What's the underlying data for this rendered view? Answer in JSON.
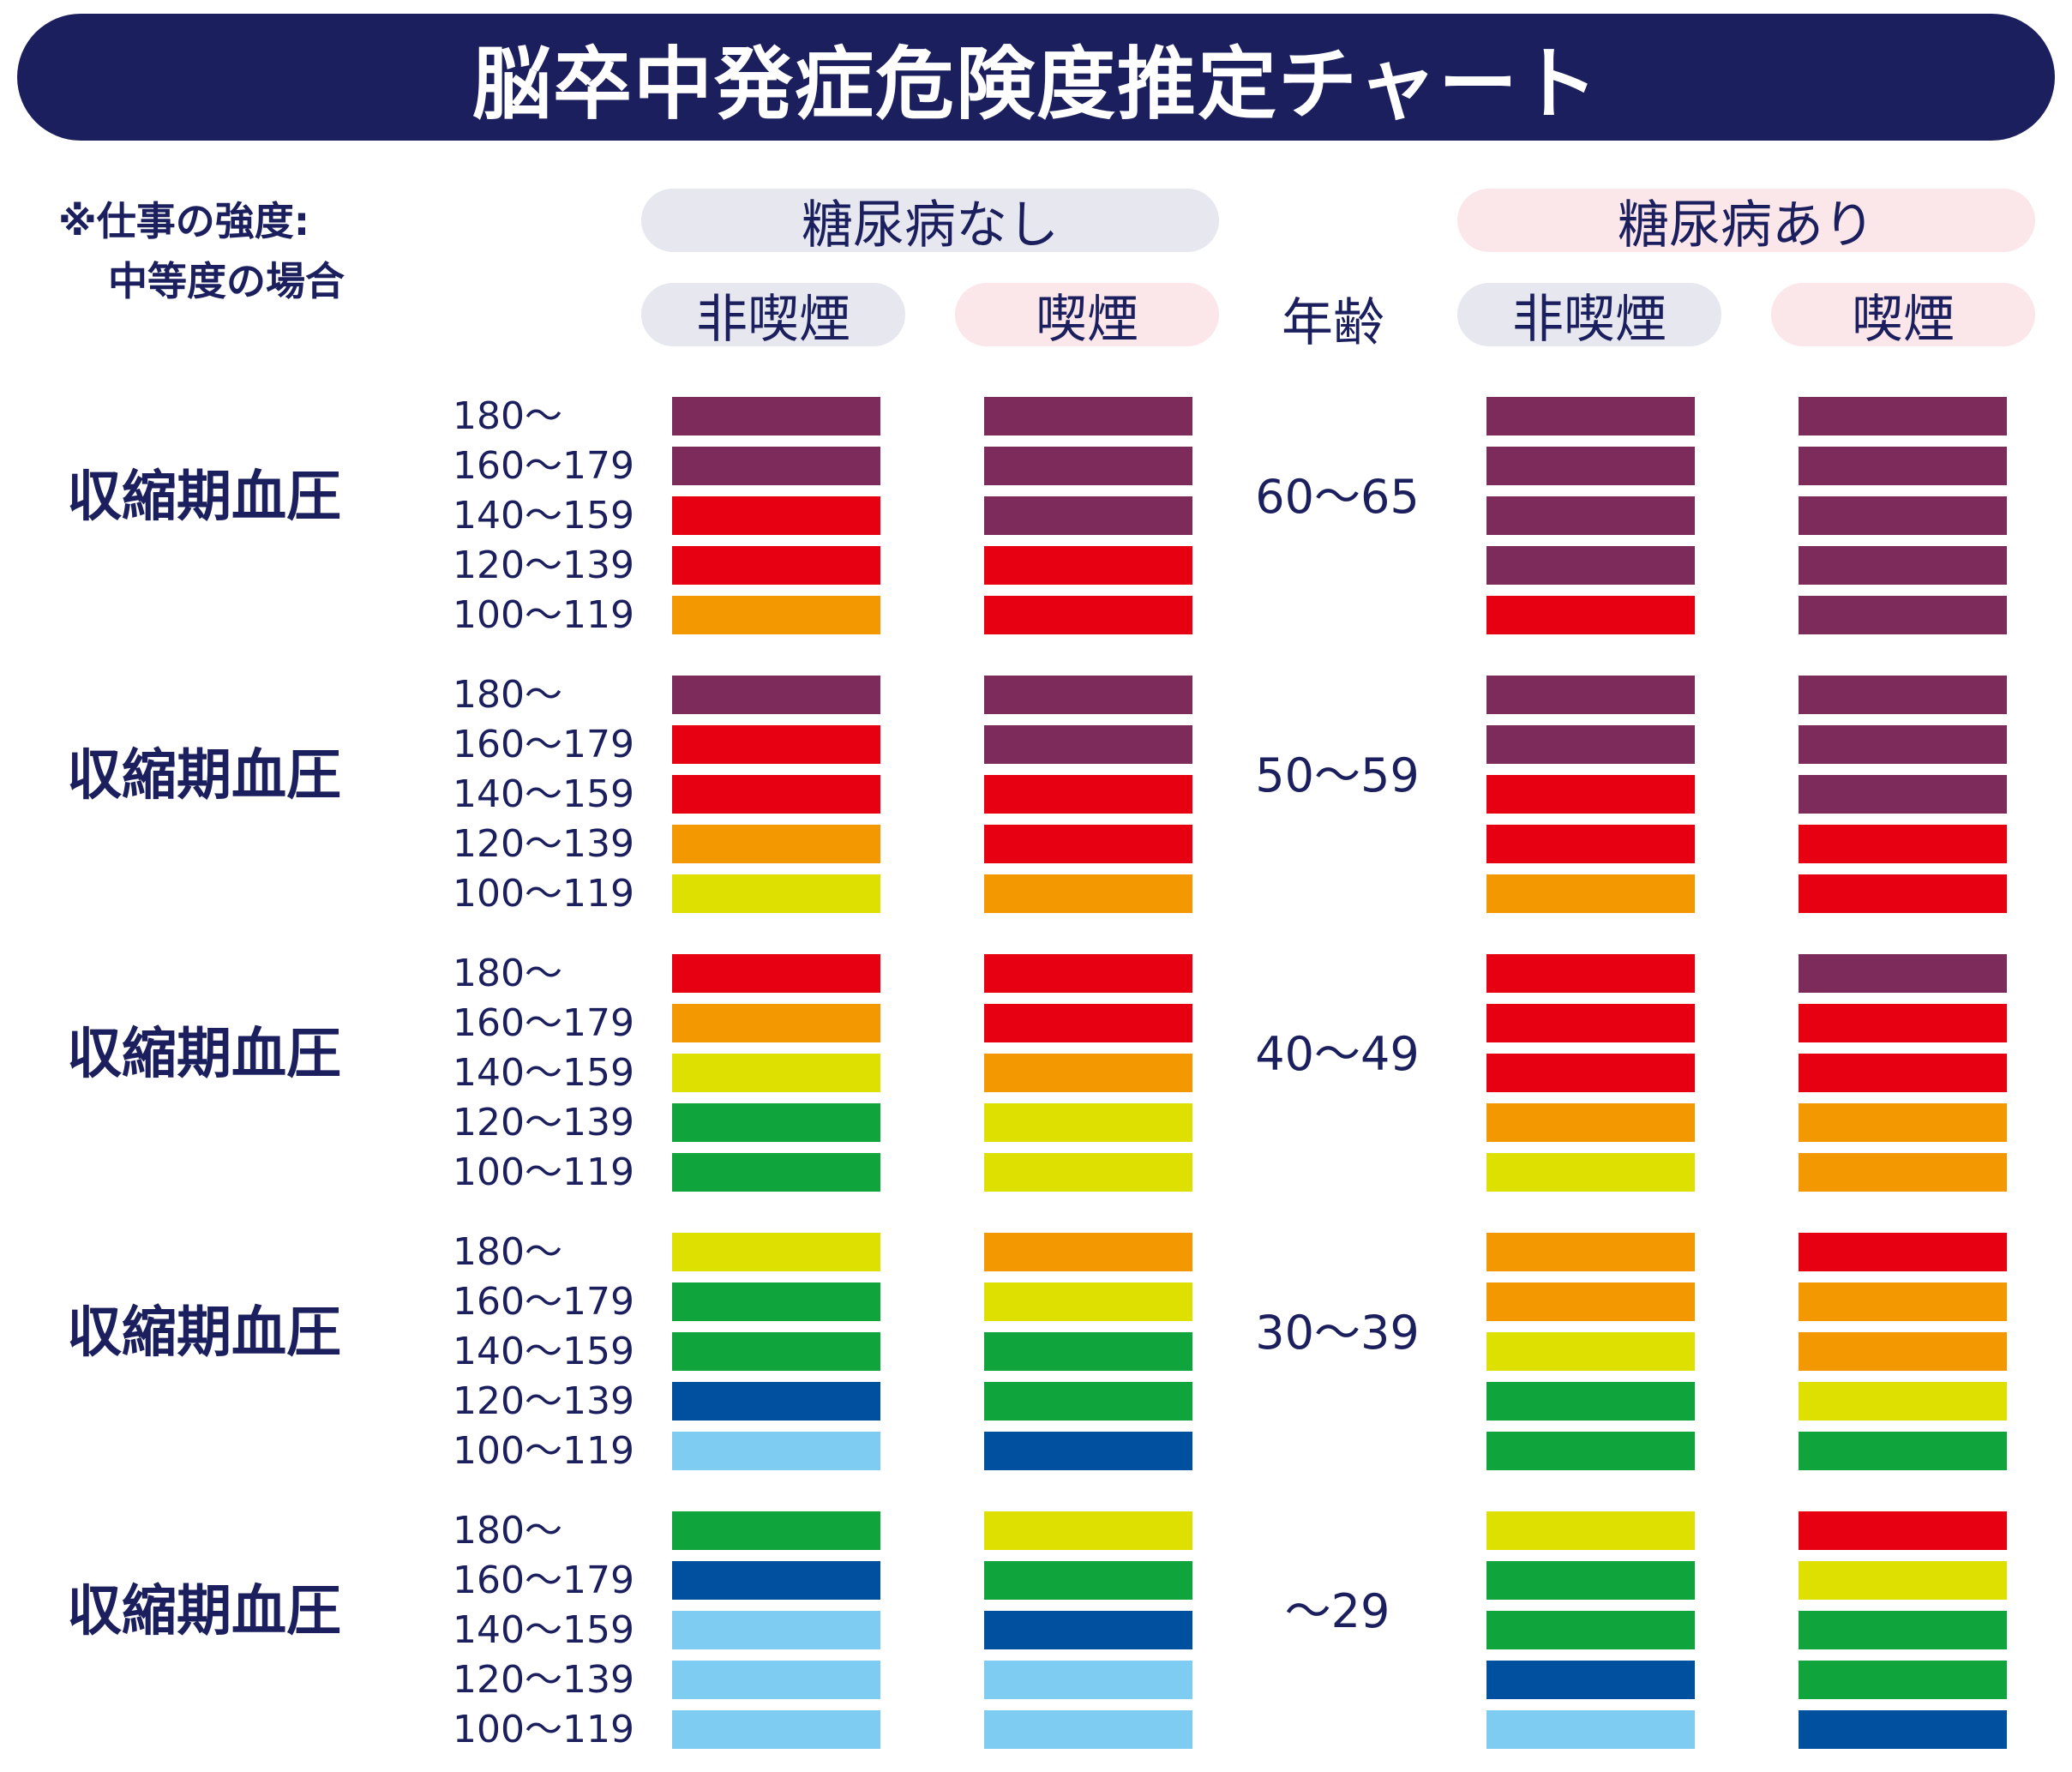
{
  "title": "脳卒中発症危険度推定チャート",
  "note": [
    "※仕事の強度:",
    "中等度の場合"
  ],
  "groups": [
    {
      "label": "糖尿病なし",
      "tone": "gray"
    },
    {
      "label": "糖尿病あり",
      "tone": "pink"
    }
  ],
  "sub_headers": [
    "非喫煙",
    "喫煙",
    "非喫煙",
    "喫煙"
  ],
  "age_header": "年齢",
  "row_label": "収縮期血圧",
  "bp_ranges": [
    "180〜",
    "160〜179",
    "140〜159",
    "120〜139",
    "100〜119"
  ],
  "colors": {
    "P": "#7c2b5a",
    "R": "#e60012",
    "O": "#f39800",
    "Y": "#dde000",
    "G": "#10a43c",
    "B": "#0050a0",
    "L": "#7fccf2",
    "pill_gray": "#e6e7ef",
    "pill_pink": "#fbe6ea",
    "navy": "#1b1f5e"
  },
  "chart_data": {
    "type": "heatmap",
    "title": "脳卒中発症危険度推定チャート",
    "columns": [
      "糖尿病なし・非喫煙",
      "糖尿病なし・喫煙",
      "糖尿病あり・非喫煙",
      "糖尿病あり・喫煙"
    ],
    "bp_ranges": [
      "180〜",
      "160〜179",
      "140〜159",
      "120〜139",
      "100〜119"
    ],
    "age_groups": [
      {
        "age": "60〜65",
        "grid": [
          "PPPP",
          "PPPP",
          "RPPP",
          "RRPP",
          "ORRP"
        ]
      },
      {
        "age": "50〜59",
        "grid": [
          "PPPP",
          "RPPP",
          "RRRP",
          "ORRR",
          "YOOR"
        ]
      },
      {
        "age": "40〜49",
        "grid": [
          "RRRP",
          "ORRR",
          "YORR",
          "GYOO",
          "GYYO"
        ]
      },
      {
        "age": "30〜39",
        "grid": [
          "YOOR",
          "GYOO",
          "GGYO",
          "BGGY",
          "LBGG"
        ]
      },
      {
        "age": "〜29",
        "grid": [
          "GYYR",
          "BGGY",
          "LBGG",
          "LLBG",
          "LLLB"
        ]
      }
    ]
  }
}
